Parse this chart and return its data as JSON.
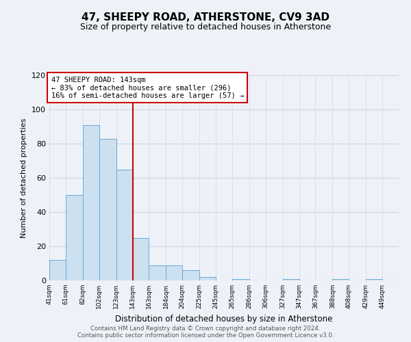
{
  "title": "47, SHEEPY ROAD, ATHERSTONE, CV9 3AD",
  "subtitle": "Size of property relative to detached houses in Atherstone",
  "xlabel": "Distribution of detached houses by size in Atherstone",
  "ylabel": "Number of detached properties",
  "bin_labels": [
    "41sqm",
    "61sqm",
    "82sqm",
    "102sqm",
    "123sqm",
    "143sqm",
    "163sqm",
    "184sqm",
    "204sqm",
    "225sqm",
    "245sqm",
    "265sqm",
    "286sqm",
    "306sqm",
    "327sqm",
    "347sqm",
    "367sqm",
    "388sqm",
    "408sqm",
    "429sqm",
    "449sqm"
  ],
  "bin_edges": [
    41,
    61,
    82,
    102,
    123,
    143,
    163,
    184,
    204,
    225,
    245,
    265,
    286,
    306,
    327,
    347,
    367,
    388,
    408,
    429,
    449
  ],
  "bar_heights": [
    12,
    50,
    91,
    83,
    65,
    25,
    9,
    9,
    6,
    2,
    0,
    1,
    0,
    0,
    1,
    0,
    0,
    1,
    0,
    1
  ],
  "bar_color": "#cce0f0",
  "bar_edge_color": "#6aaad4",
  "vline_x": 143,
  "vline_color": "#cc0000",
  "ylim": [
    0,
    120
  ],
  "yticks": [
    0,
    20,
    40,
    60,
    80,
    100,
    120
  ],
  "annotation_title": "47 SHEEPY ROAD: 143sqm",
  "annotation_line1": "← 83% of detached houses are smaller (296)",
  "annotation_line2": "16% of semi-detached houses are larger (57) →",
  "annotation_box_color": "#ffffff",
  "annotation_box_edge": "#cc0000",
  "footer_line1": "Contains HM Land Registry data © Crown copyright and database right 2024.",
  "footer_line2": "Contains public sector information licensed under the Open Government Licence v3.0.",
  "background_color": "#eef2f8",
  "grid_color": "#d0d8e8",
  "title_fontsize": 11,
  "subtitle_fontsize": 9
}
